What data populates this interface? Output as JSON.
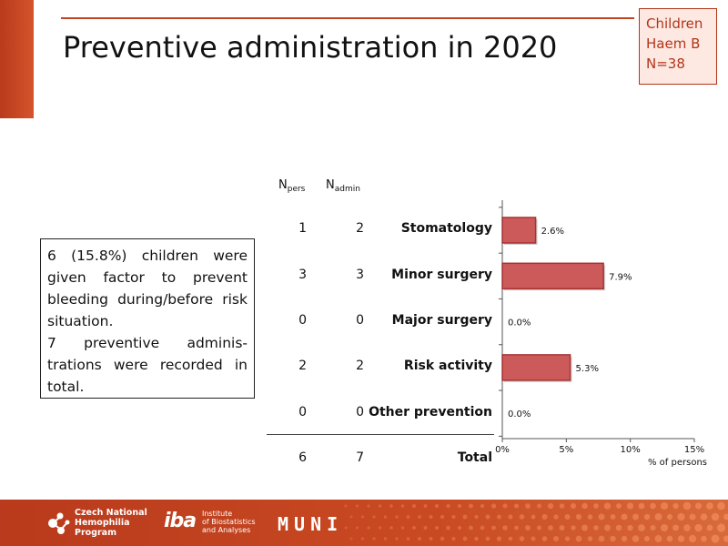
{
  "slide": {
    "title": "Preventive administration in 2020",
    "badge": {
      "line1": "Children",
      "line2": "Haem B",
      "line3": "N=38"
    },
    "summary": {
      "p1": "6 (15.8%) children were given factor to prevent bleeding during/before risk situation.",
      "p2": "7 preventive adminis-trations were recorded in total."
    },
    "columns": {
      "npers_main": "N",
      "npers_sub": "pers",
      "nadmin_main": "N",
      "nadmin_sub": "admin"
    },
    "rows": [
      {
        "label": "Stomatology",
        "npers": "1",
        "nadmin": "2"
      },
      {
        "label": "Minor surgery",
        "npers": "3",
        "nadmin": "3"
      },
      {
        "label": "Major surgery",
        "npers": "0",
        "nadmin": "0"
      },
      {
        "label": "Risk activity",
        "npers": "2",
        "nadmin": "2"
      },
      {
        "label": "Other prevention",
        "npers": "0",
        "nadmin": "0"
      }
    ],
    "total": {
      "label": "Total",
      "npers": "6",
      "nadmin": "7"
    }
  },
  "chart_data": {
    "type": "bar",
    "orientation": "horizontal",
    "categories": [
      "Stomatology",
      "Minor surgery",
      "Major surgery",
      "Risk activity",
      "Other prevention"
    ],
    "values": [
      2.6,
      7.9,
      0.0,
      5.3,
      0.0
    ],
    "data_labels": [
      "2.6%",
      "7.9%",
      "0.0%",
      "5.3%",
      "0.0%"
    ],
    "xlim": [
      0,
      15
    ],
    "xticks": [
      0,
      5,
      10,
      15
    ],
    "xtick_labels": [
      "0%",
      "5%",
      "10%",
      "15%"
    ],
    "xlabel": "% of persons",
    "grid": false,
    "bar_color": "#cd5a5a",
    "bar_border": "#a63232"
  },
  "footer": {
    "cnhp_line1": "Czech National",
    "cnhp_line2": "Hemophilia",
    "cnhp_line3": "Program",
    "iba_mark": "iba",
    "iba_line1": "Institute",
    "iba_line2": "of Biostatistics",
    "iba_line3": "and Analyses",
    "muni": "MUNI"
  },
  "colors": {
    "accent": "#c0451f",
    "badge_text": "#b2341a",
    "badge_bg": "#fde9e2"
  }
}
